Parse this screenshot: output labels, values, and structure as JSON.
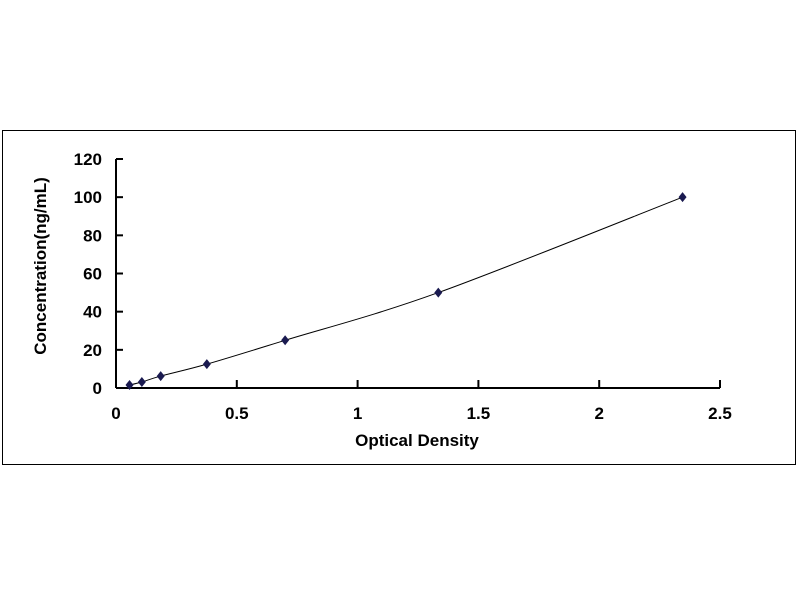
{
  "chart_data": {
    "type": "scatter",
    "title": "",
    "xlabel": "Optical Density",
    "ylabel": "Concentration(ng/mL)",
    "xlim": [
      0,
      2.5
    ],
    "ylim": [
      0,
      120
    ],
    "xticks": [
      "0",
      "0.5",
      "1",
      "1.5",
      "2",
      "2.5"
    ],
    "yticks": [
      "0",
      "20",
      "40",
      "60",
      "80",
      "100",
      "120"
    ],
    "grid": false,
    "legend": "none",
    "trendline": "smooth curve through points",
    "marker": "diamond",
    "marker_color": "#1a1a50",
    "line_color": "#000000",
    "series": [
      {
        "x": [
          0.056,
          0.107,
          0.185,
          0.376,
          0.7,
          1.334,
          2.345
        ],
        "y": [
          1.56,
          3.13,
          6.25,
          12.5,
          25,
          50,
          100
        ]
      }
    ]
  }
}
